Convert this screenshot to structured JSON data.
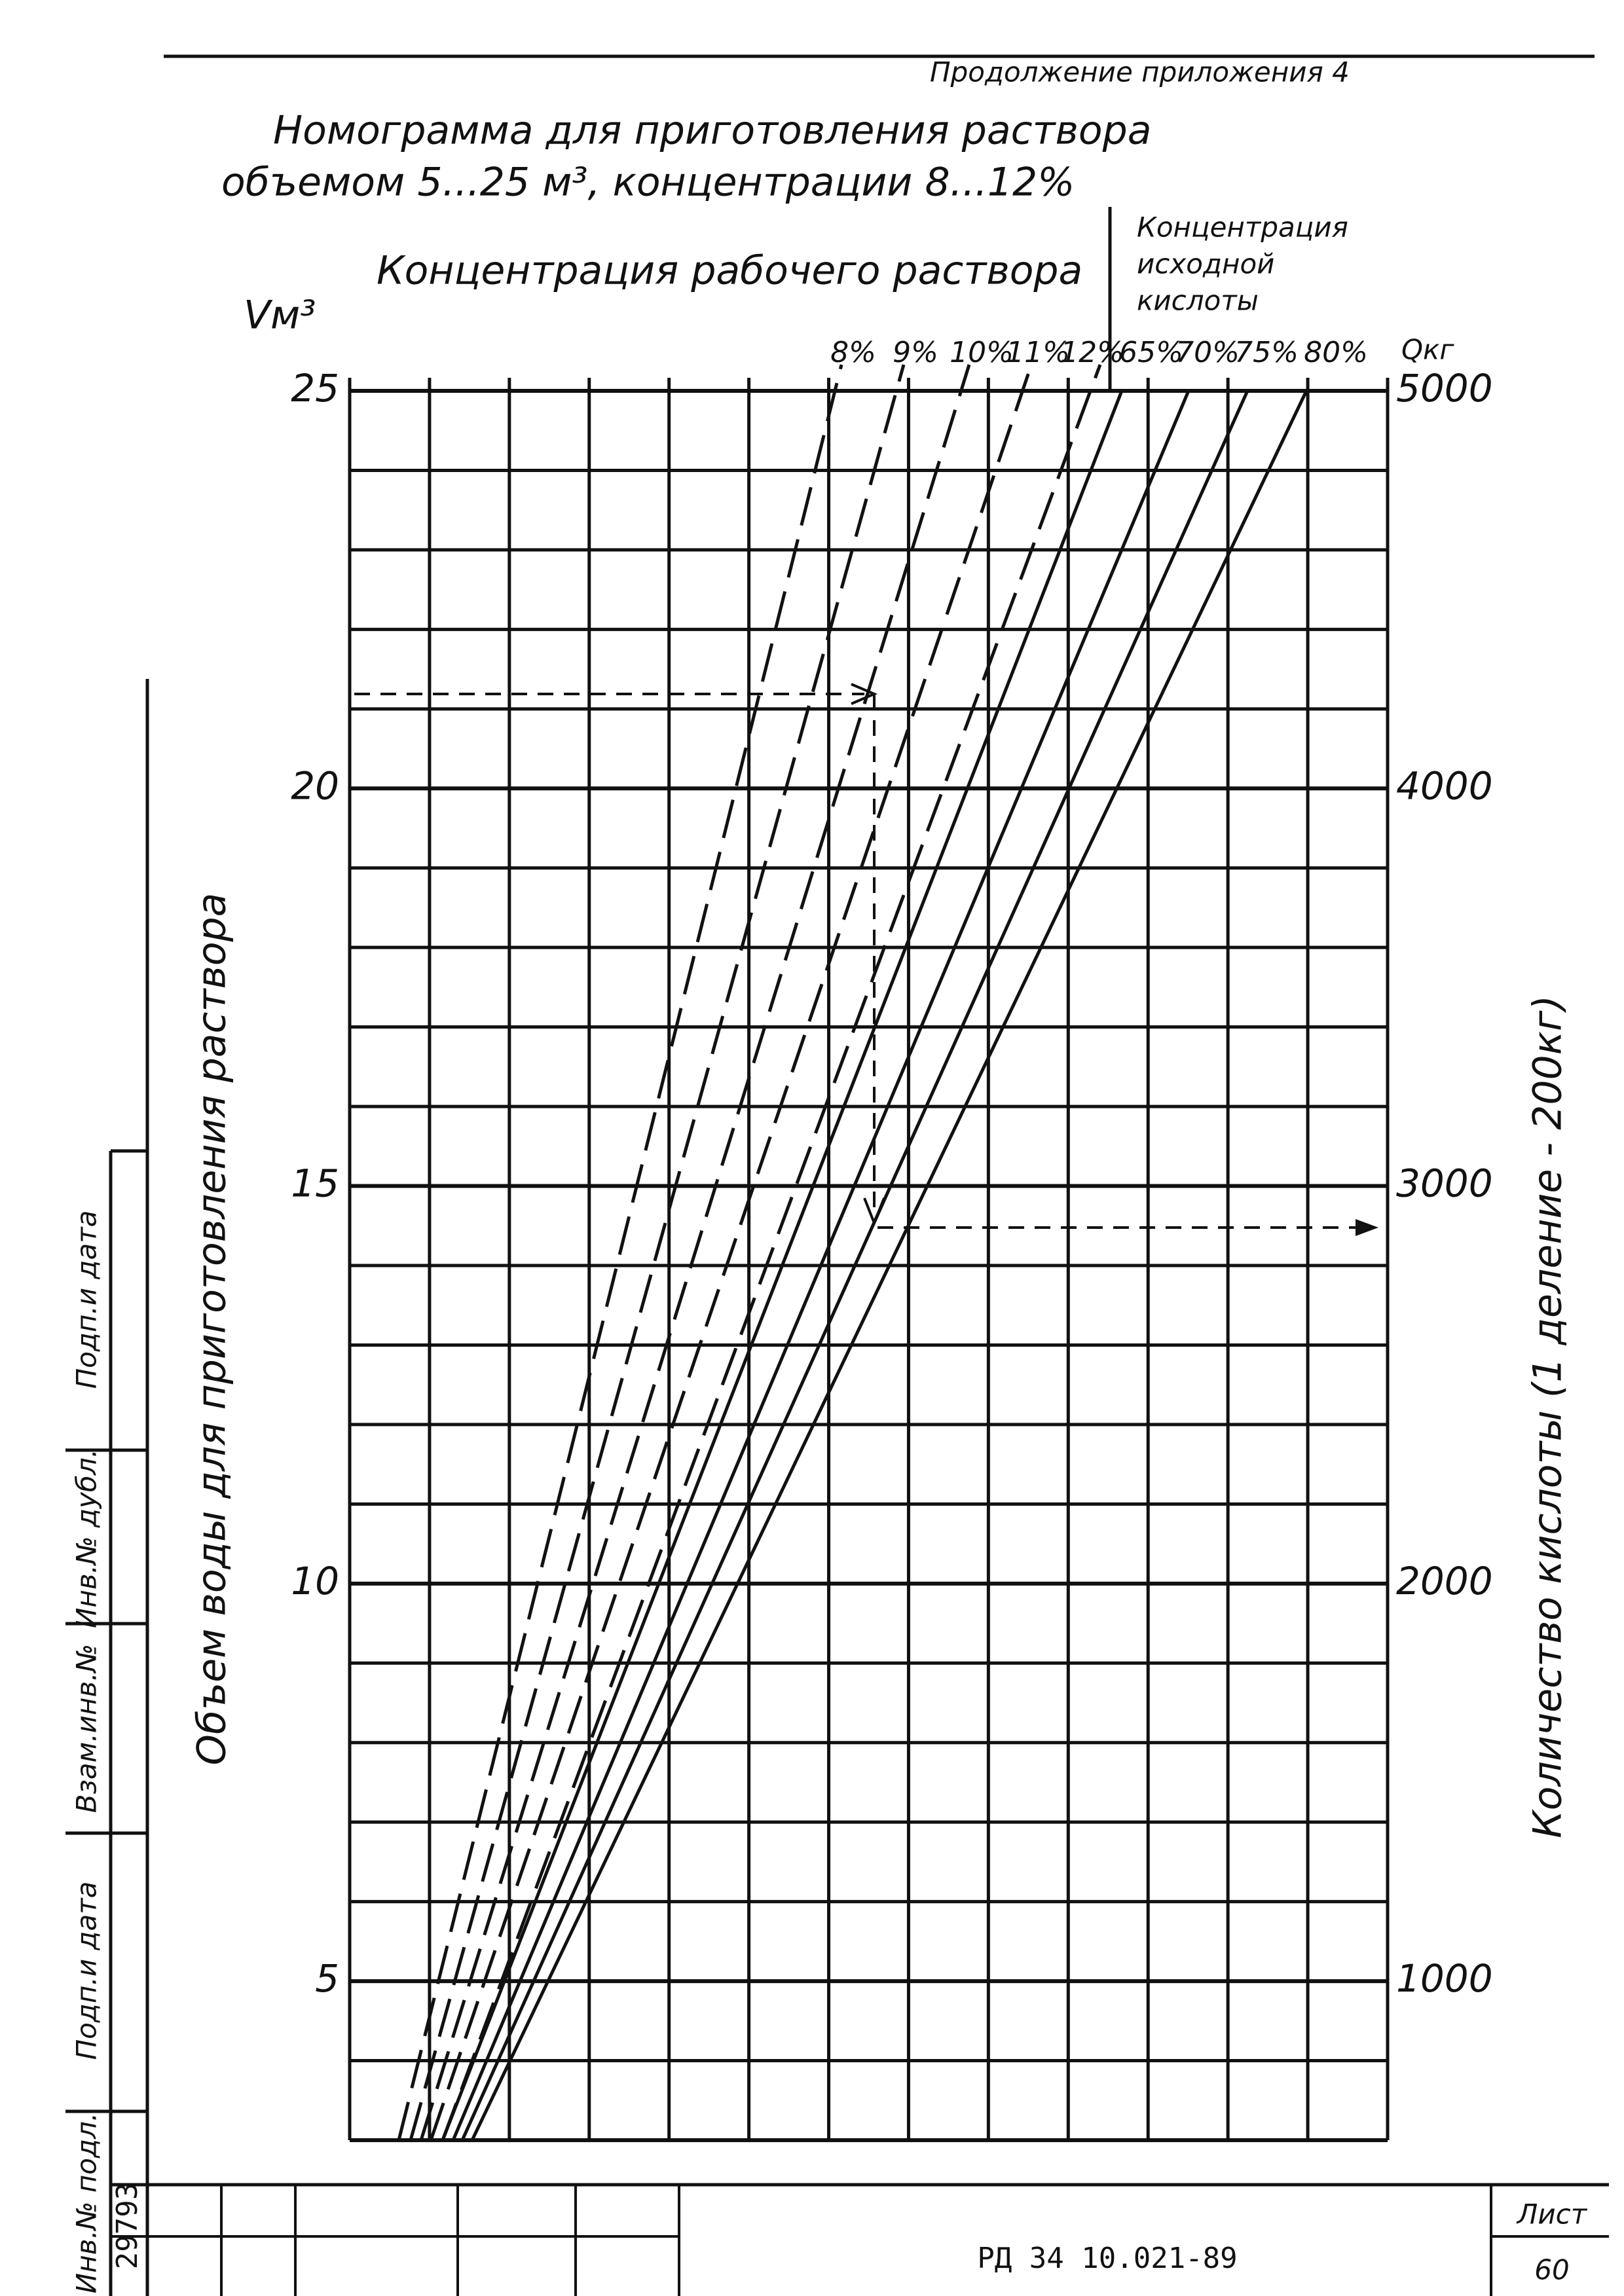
{
  "header": {
    "note": "Продолжение приложения 4",
    "title": [
      "Номограмма для приготовления раствора",
      "объемом 5...25 м³, концентрации 8...12%"
    ]
  },
  "nomogram": {
    "working_concentration": {
      "label": "Концентрация рабочего раствора",
      "values": [
        "8%",
        "9%",
        "10%",
        "11%",
        "12%"
      ]
    },
    "source_concentration": {
      "label": [
        "Концентрация",
        "исходной",
        "кислоты"
      ],
      "values": [
        "65%",
        "70%",
        "75%",
        "80%"
      ]
    },
    "left_axis": {
      "symbol": "Vм³",
      "label": "Объем воды для приготовления раствора",
      "ticks": [
        "25",
        "20",
        "15",
        "10",
        "5"
      ]
    },
    "right_axis": {
      "symbol": "Qкг",
      "label": "Количество кислоты (1 деление - 200кг)",
      "ticks": [
        "5000",
        "4000",
        "3000",
        "2000",
        "1000"
      ]
    }
  },
  "stamp": {
    "cells": [
      "Инв.№ подл.",
      "Подп.и дата",
      "Взам.инв.№",
      "Инв.№ дубл.",
      "Подп.и дата"
    ],
    "number": "29793"
  },
  "footer": {
    "code": "РД 34 10.021-89",
    "sheet_label": "Лист",
    "sheet": "60"
  }
}
